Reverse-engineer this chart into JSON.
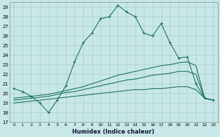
{
  "xlabel": "Humidex (Indice chaleur)",
  "xlim": [
    -0.5,
    23.5
  ],
  "ylim": [
    17,
    29.5
  ],
  "yticks": [
    17,
    18,
    19,
    20,
    21,
    22,
    23,
    24,
    25,
    26,
    27,
    28,
    29
  ],
  "xticks": [
    0,
    1,
    2,
    3,
    4,
    5,
    6,
    7,
    8,
    9,
    10,
    11,
    12,
    13,
    14,
    15,
    16,
    17,
    18,
    19,
    20,
    21,
    22,
    23
  ],
  "background_color": "#c8e8e8",
  "grid_color": "#a8cccc",
  "line_color": "#1a6e60",
  "line1_x": [
    0,
    1,
    2,
    3,
    4,
    5,
    6,
    7,
    8,
    9,
    10,
    11,
    12,
    13,
    14,
    15,
    16,
    17,
    18,
    19,
    20,
    21,
    22,
    23
  ],
  "line1_y": [
    20.5,
    20.2,
    19.7,
    19.0,
    18.0,
    19.3,
    20.8,
    23.3,
    25.3,
    26.3,
    27.8,
    28.0,
    29.2,
    28.5,
    28.0,
    26.3,
    26.0,
    27.3,
    25.3,
    23.7,
    23.8,
    21.0,
    19.5,
    19.3
  ],
  "line2_x": [
    0,
    1,
    2,
    3,
    4,
    5,
    6,
    7,
    8,
    9,
    10,
    11,
    12,
    13,
    14,
    15,
    16,
    17,
    18,
    19,
    20,
    21,
    22,
    23
  ],
  "line2_y": [
    19.5,
    19.6,
    19.7,
    19.8,
    19.9,
    20.1,
    20.3,
    20.5,
    20.7,
    21.0,
    21.3,
    21.6,
    21.9,
    22.1,
    22.3,
    22.5,
    22.7,
    22.9,
    23.0,
    23.2,
    23.3,
    22.9,
    19.5,
    19.3
  ],
  "line3_x": [
    0,
    1,
    2,
    3,
    4,
    5,
    6,
    7,
    8,
    9,
    10,
    11,
    12,
    13,
    14,
    15,
    16,
    17,
    18,
    19,
    20,
    21,
    22,
    23
  ],
  "line3_y": [
    19.3,
    19.4,
    19.5,
    19.6,
    19.7,
    19.9,
    20.1,
    20.2,
    20.4,
    20.6,
    20.8,
    21.0,
    21.2,
    21.4,
    21.5,
    21.7,
    21.9,
    22.0,
    22.1,
    22.3,
    22.3,
    22.0,
    19.5,
    19.3
  ],
  "line4_x": [
    0,
    1,
    2,
    3,
    4,
    5,
    6,
    7,
    8,
    9,
    10,
    11,
    12,
    13,
    14,
    15,
    16,
    17,
    18,
    19,
    20,
    21,
    22,
    23
  ],
  "line4_y": [
    19.0,
    19.1,
    19.2,
    19.3,
    19.4,
    19.5,
    19.6,
    19.7,
    19.8,
    19.9,
    20.0,
    20.1,
    20.2,
    20.3,
    20.4,
    20.4,
    20.5,
    20.5,
    20.6,
    20.7,
    20.7,
    20.4,
    19.5,
    19.3
  ]
}
